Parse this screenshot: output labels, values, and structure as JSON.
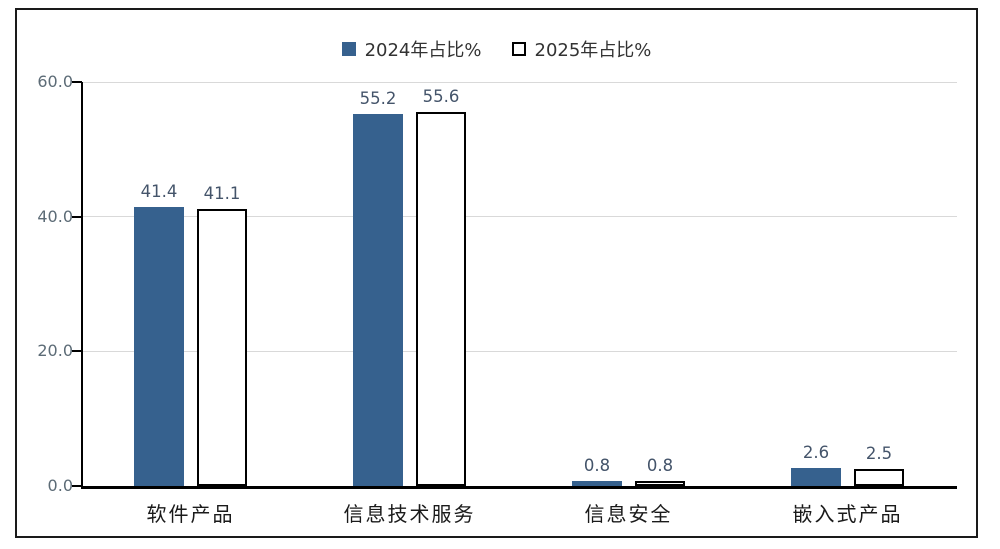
{
  "chart_data": {
    "type": "bar",
    "title": "",
    "xlabel": "",
    "ylabel": "",
    "categories": [
      "软件产品",
      "信息技术服务",
      "信息安全",
      "嵌入式产品"
    ],
    "series": [
      {
        "name": "2024年占比%",
        "values": [
          41.4,
          55.2,
          0.8,
          2.6
        ],
        "labels": [
          "41.4",
          "55.2",
          "0.8",
          "2.6"
        ],
        "fill": "#36618e",
        "border": "#36618e"
      },
      {
        "name": "2025年占比%",
        "values": [
          41.1,
          55.6,
          0.8,
          2.5
        ],
        "labels": [
          "41.1",
          "55.6",
          "0.8",
          "2.5"
        ],
        "fill": "#ffffff",
        "border": "#000000"
      }
    ],
    "ylim": [
      0,
      60
    ],
    "yticks": [
      0,
      20,
      40,
      60
    ],
    "ytick_labels": [
      "0.0",
      "20.0",
      "40.0",
      "60.0"
    ],
    "grid": true,
    "legend_position": "top-center"
  },
  "colors": {
    "gridline": "#d9d9d9",
    "axis": "#000000",
    "data_label": "#44546a",
    "ytick_label": "#5c6b76",
    "category_label": "#1a1a1a",
    "legend_text": "#333333",
    "frame_border": "#1a1a1a",
    "background": "#ffffff"
  }
}
